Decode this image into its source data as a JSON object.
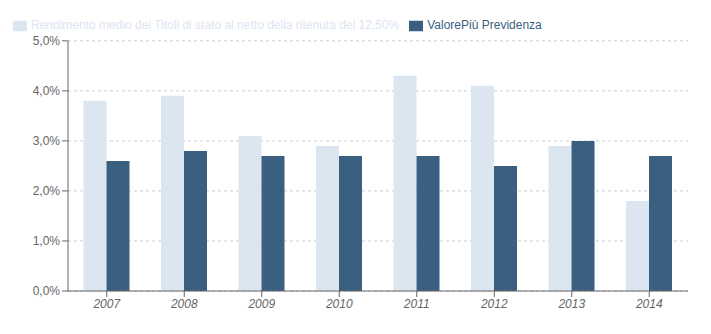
{
  "chart_data": {
    "type": "bar",
    "categories": [
      "2007",
      "2008",
      "2009",
      "2010",
      "2011",
      "2012",
      "2013",
      "2014"
    ],
    "series": [
      {
        "name": "Rendimento medio dei Titoli di stato al netto della ritenuta del 12,50%",
        "color": "#dce6f1",
        "values": [
          0.038,
          0.039,
          0.031,
          0.029,
          0.043,
          0.041,
          0.029,
          0.018
        ]
      },
      {
        "name": "ValorePiù Previdenza",
        "color": "#3b5f80",
        "values": [
          0.026,
          0.028,
          0.027,
          0.027,
          0.027,
          0.025,
          0.03,
          0.027
        ]
      }
    ],
    "ylim": [
      0.0,
      0.05
    ],
    "yticks": [
      {
        "value": 0.0,
        "label": "0,0%"
      },
      {
        "value": 0.01,
        "label": "1,0%"
      },
      {
        "value": 0.02,
        "label": "2,0%"
      },
      {
        "value": 0.03,
        "label": "3,0%"
      },
      {
        "value": 0.04,
        "label": "4,0%"
      },
      {
        "value": 0.05,
        "label": "5,0%"
      }
    ],
    "grid": true,
    "legend": "upper left"
  }
}
